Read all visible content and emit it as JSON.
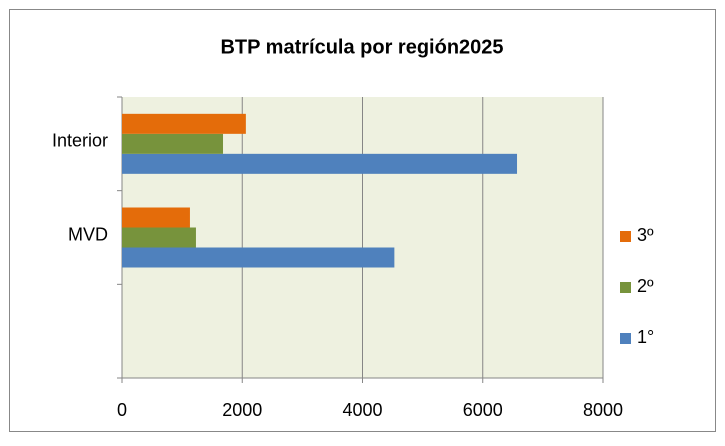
{
  "chart_data": {
    "type": "barh",
    "title": "BTP matrícula por región2025",
    "categories": [
      "Interior",
      "MVD",
      null
    ],
    "series": [
      {
        "name": "1°",
        "color": "#4f81bd",
        "values": [
          6570,
          4530,
          null
        ]
      },
      {
        "name": "2º",
        "color": "#77933c",
        "values": [
          1680,
          1230,
          null
        ]
      },
      {
        "name": "3º",
        "color": "#e46c0a",
        "values": [
          2060,
          1130,
          null
        ]
      }
    ],
    "xlim": [
      0,
      8000
    ],
    "xticks": [
      0,
      2000,
      4000,
      6000,
      8000
    ],
    "grid": true,
    "legend": "right"
  }
}
